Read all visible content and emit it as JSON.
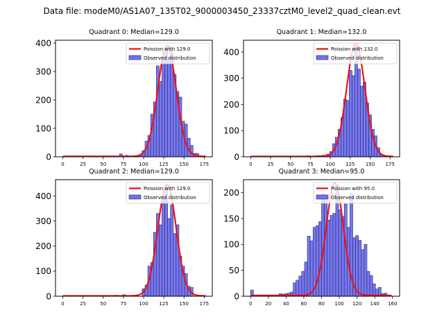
{
  "figure": {
    "suptitle": "Data file: modeM0/AS1A07_135T02_9000003450_23337cztM0_level2_quad_clean.evt"
  },
  "colors": {
    "bar_fill": "#7070ee",
    "bar_edge": "#2a2a6a",
    "fit_line": "#ee1111",
    "axis": "#000000"
  },
  "chart_data": [
    {
      "type": "bar",
      "title": "Quadrant 0: Median=129.0",
      "xlabel": "",
      "ylabel": "",
      "xlim": [
        -9,
        185
      ],
      "ylim": [
        0,
        410
      ],
      "xticks": [
        0,
        25,
        50,
        75,
        100,
        125,
        150,
        175
      ],
      "yticks": [
        0,
        100,
        200,
        300,
        400
      ],
      "legend": {
        "position": "top-right",
        "entries": [
          "Poission with 129.0",
          "Observed distribution"
        ]
      },
      "bin_width": 3.5,
      "bins": [
        [
          33,
          1
        ],
        [
          72,
          10
        ],
        [
          79,
          5
        ],
        [
          83,
          2
        ],
        [
          90,
          3
        ],
        [
          93,
          4
        ],
        [
          97,
          8
        ],
        [
          100,
          22
        ],
        [
          103.5,
          55
        ],
        [
          107,
          75
        ],
        [
          110.5,
          150
        ],
        [
          114,
          193
        ],
        [
          117.5,
          320
        ],
        [
          121,
          265
        ],
        [
          124.5,
          350
        ],
        [
          128,
          385
        ],
        [
          131.5,
          350
        ],
        [
          135,
          375
        ],
        [
          138.5,
          290
        ],
        [
          142,
          230
        ],
        [
          145.5,
          210
        ],
        [
          149,
          125
        ],
        [
          152.5,
          115
        ],
        [
          156,
          65
        ],
        [
          159.5,
          40
        ],
        [
          163,
          12
        ],
        [
          166.5,
          12
        ],
        [
          173,
          1
        ]
      ],
      "fit": {
        "name": "Poission with 129.0",
        "mu": 129.0,
        "peak": 390,
        "x_range": [
          0,
          177
        ]
      }
    },
    {
      "type": "bar",
      "title": "Quadrant 1: Median=132.0",
      "xlabel": "",
      "ylabel": "",
      "xlim": [
        -9,
        187
      ],
      "ylim": [
        0,
        445
      ],
      "xticks": [
        0,
        25,
        50,
        75,
        100,
        125,
        150,
        175
      ],
      "yticks": [
        0,
        100,
        200,
        300,
        400
      ],
      "legend": {
        "position": "top-right",
        "entries": [
          "Poission with 132.0",
          "Observed distribution"
        ]
      },
      "bin_width": 3.5,
      "bins": [
        [
          68,
          3
        ],
        [
          72,
          4
        ],
        [
          83,
          4
        ],
        [
          88,
          5
        ],
        [
          92,
          6
        ],
        [
          97,
          10
        ],
        [
          101,
          20
        ],
        [
          104.5,
          50
        ],
        [
          108,
          75
        ],
        [
          111.5,
          105
        ],
        [
          115,
          150
        ],
        [
          118.5,
          220
        ],
        [
          122,
          215
        ],
        [
          125.5,
          330
        ],
        [
          129,
          310
        ],
        [
          132.5,
          420
        ],
        [
          136,
          335
        ],
        [
          139.5,
          270
        ],
        [
          143,
          285
        ],
        [
          146.5,
          205
        ],
        [
          150,
          160
        ],
        [
          153.5,
          105
        ],
        [
          157,
          80
        ],
        [
          160.5,
          35
        ],
        [
          164,
          10
        ],
        [
          167.5,
          5
        ],
        [
          172,
          2
        ]
      ],
      "fit": {
        "name": "Poission with 132.0",
        "mu": 132.0,
        "peak": 430,
        "x_range": [
          0,
          179
        ]
      }
    },
    {
      "type": "bar",
      "title": "Quadrant 2: Median=129.0",
      "xlabel": "",
      "ylabel": "",
      "xlim": [
        -9,
        185
      ],
      "ylim": [
        0,
        465
      ],
      "xticks": [
        0,
        25,
        50,
        75,
        100,
        125,
        150,
        175
      ],
      "yticks": [
        0,
        100,
        200,
        300,
        400
      ],
      "legend": {
        "position": "top-right",
        "entries": [
          "Poission with 129.0",
          "Observed distribution"
        ]
      },
      "bin_width": 3.5,
      "bins": [
        [
          33,
          1
        ],
        [
          66,
          4
        ],
        [
          76,
          6
        ],
        [
          84,
          3
        ],
        [
          90,
          4
        ],
        [
          100,
          30
        ],
        [
          103.5,
          45
        ],
        [
          107,
          120
        ],
        [
          110.5,
          135
        ],
        [
          114,
          255
        ],
        [
          117.5,
          330
        ],
        [
          121,
          285
        ],
        [
          124.5,
          400
        ],
        [
          128,
          440
        ],
        [
          131.5,
          310
        ],
        [
          135,
          365
        ],
        [
          138.5,
          250
        ],
        [
          142,
          285
        ],
        [
          145.5,
          160
        ],
        [
          149,
          120
        ],
        [
          152.5,
          90
        ],
        [
          156,
          40
        ],
        [
          159.5,
          35
        ]
      ],
      "fit": {
        "name": "Poission with 129.0",
        "mu": 129.0,
        "peak": 445,
        "x_range": [
          0,
          177
        ]
      }
    },
    {
      "type": "bar",
      "title": "Quadrant 3: Median=95.0",
      "xlabel": "",
      "ylabel": "",
      "xlim": [
        -8,
        168
      ],
      "ylim": [
        0,
        225
      ],
      "xticks": [
        0,
        20,
        40,
        60,
        80,
        100,
        120,
        140,
        160
      ],
      "yticks": [
        0,
        50,
        100,
        150,
        200
      ],
      "legend": {
        "position": "top-right",
        "entries": [
          "Poission with 95.0",
          "Observed distribution"
        ]
      },
      "bin_width": 3.2,
      "bins": [
        [
          1.6,
          12
        ],
        [
          30.4,
          2
        ],
        [
          33.6,
          5
        ],
        [
          36.8,
          4
        ],
        [
          40,
          5
        ],
        [
          43.2,
          6
        ],
        [
          46.4,
          8
        ],
        [
          49.6,
          26
        ],
        [
          52.8,
          31
        ],
        [
          56,
          39
        ],
        [
          59.2,
          48
        ],
        [
          62.4,
          66
        ],
        [
          65.6,
          116
        ],
        [
          68.8,
          107
        ],
        [
          72,
          133
        ],
        [
          75.2,
          136
        ],
        [
          78.4,
          144
        ],
        [
          81.6,
          198
        ],
        [
          84.8,
          185
        ],
        [
          88,
          147
        ],
        [
          91.2,
          156
        ],
        [
          94.4,
          160
        ],
        [
          97.6,
          215
        ],
        [
          100.8,
          167
        ],
        [
          104,
          154
        ],
        [
          107.2,
          178
        ],
        [
          110.4,
          133
        ],
        [
          113.6,
          198
        ],
        [
          116.8,
          113
        ],
        [
          120,
          117
        ],
        [
          123.2,
          108
        ],
        [
          126.4,
          90
        ],
        [
          129.6,
          100
        ],
        [
          132.8,
          48
        ],
        [
          136,
          40
        ],
        [
          139.2,
          24
        ],
        [
          142.4,
          14
        ],
        [
          145.6,
          17
        ],
        [
          148.8,
          5
        ],
        [
          152,
          6
        ]
      ],
      "fit": {
        "name": "Poission with 95.0",
        "mu": 95.0,
        "peak": 217,
        "x_range": [
          0,
          159
        ]
      }
    }
  ]
}
